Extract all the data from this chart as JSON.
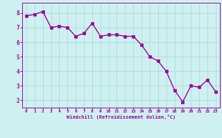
{
  "x": [
    0,
    1,
    2,
    3,
    4,
    5,
    6,
    7,
    8,
    9,
    10,
    11,
    12,
    13,
    14,
    15,
    16,
    17,
    18,
    19,
    20,
    21,
    22,
    23
  ],
  "y": [
    7.8,
    7.9,
    8.1,
    7.0,
    7.1,
    7.0,
    6.4,
    6.6,
    7.3,
    6.4,
    6.5,
    6.5,
    6.4,
    6.4,
    5.8,
    5.0,
    4.7,
    4.0,
    2.7,
    1.9,
    3.0,
    2.9,
    3.4,
    2.6
  ],
  "line_color": "#990099",
  "marker": "s",
  "marker_size": 2.5,
  "line_width": 1.0,
  "bg_color": "#cff0f0",
  "grid_color": "#b0dede",
  "xlabel": "Windchill (Refroidissement éolien,°C)",
  "xlabel_color": "#990099",
  "tick_color": "#990099",
  "axis_color": "#990099",
  "ylim": [
    1.5,
    8.7
  ],
  "xlim": [
    -0.5,
    23.5
  ],
  "yticks": [
    2,
    3,
    4,
    5,
    6,
    7,
    8
  ],
  "xticks": [
    0,
    1,
    2,
    3,
    4,
    5,
    6,
    7,
    8,
    9,
    10,
    11,
    12,
    13,
    14,
    15,
    16,
    17,
    18,
    19,
    20,
    21,
    22,
    23
  ]
}
